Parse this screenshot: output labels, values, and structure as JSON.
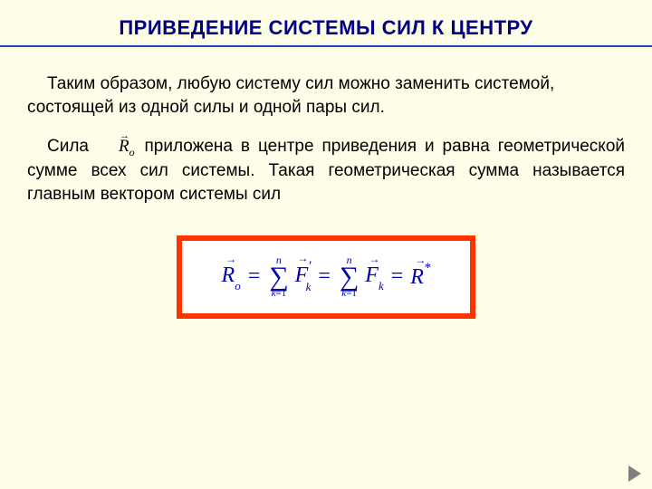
{
  "colors": {
    "slide_bg": "#fdfde8",
    "title_color": "#000080",
    "title_underline": "#1a4db3",
    "text_color": "#000000",
    "formula_border": "#ff3300",
    "formula_bg": "#ffffff",
    "formula_color": "#0000b3",
    "nav_arrow": "#808080"
  },
  "title": "ПРИВЕДЕНИЕ СИСТЕМЫ СИЛ К ЦЕНТРУ",
  "para1": "Таким образом, любую систему сил можно  заменить системой, состоящей из одной  силы и одной пары сил.",
  "para2_pre": "Сила ",
  "para2_vec_letter": "R",
  "para2_vec_sub": "о",
  "para2_post": " приложена в центре приведения и равна геометрической  сумме  всех  сил  системы. Такая геометрическая сумма называется главным вектором системы сил",
  "formula": {
    "R": "R",
    "R_sub": "o",
    "sigma_top": "n",
    "sigma_bot_k": "k",
    "sigma_bot_eq": "=1",
    "F1": "F",
    "F1_sub": "k",
    "F1_prime": "′",
    "F2": "F",
    "F2_sub": "k",
    "Rstar": "R",
    "Rstar_sup": "*",
    "eq": "="
  }
}
